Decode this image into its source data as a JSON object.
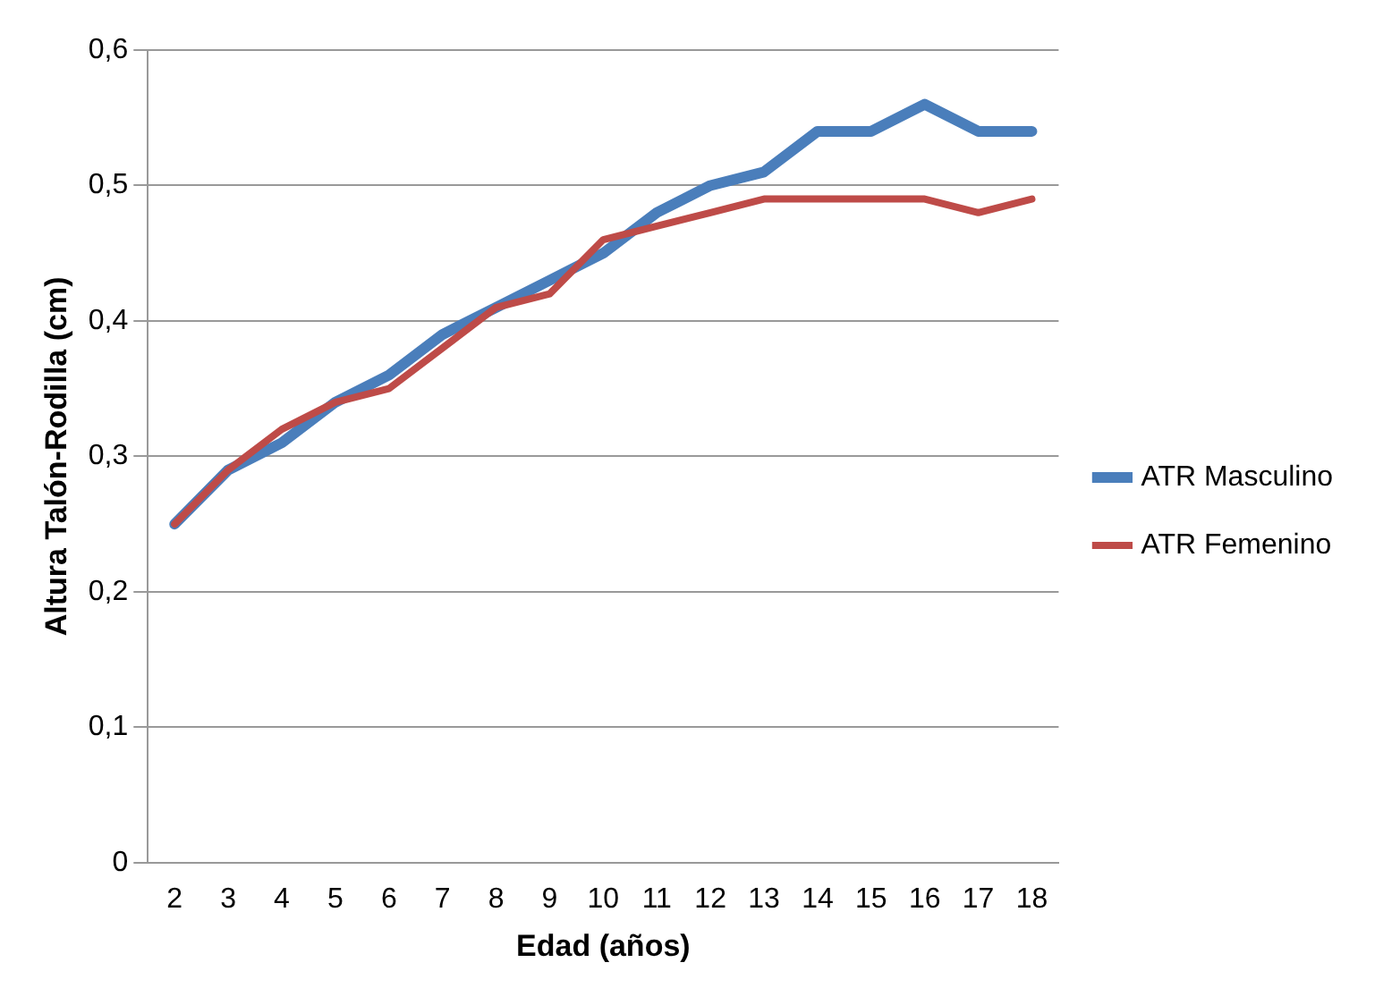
{
  "chart_data": {
    "type": "line",
    "xlabel": "Edad (años)",
    "ylabel": "Altura Talón-Rodilla (cm)",
    "categories": [
      "2",
      "3",
      "4",
      "5",
      "6",
      "7",
      "8",
      "9",
      "10",
      "11",
      "12",
      "13",
      "14",
      "15",
      "16",
      "17",
      "18"
    ],
    "series": [
      {
        "name": "ATR Masculino",
        "color": "#4a7ebb",
        "values": [
          0.25,
          0.29,
          0.31,
          0.34,
          0.36,
          0.39,
          0.41,
          0.43,
          0.45,
          0.48,
          0.5,
          0.51,
          0.54,
          0.54,
          0.56,
          0.54,
          0.54
        ]
      },
      {
        "name": "ATR Femenino",
        "color": "#be4b48",
        "values": [
          0.25,
          0.29,
          0.32,
          0.34,
          0.35,
          0.38,
          0.41,
          0.42,
          0.46,
          0.47,
          0.48,
          0.49,
          0.49,
          0.49,
          0.49,
          0.48,
          0.49
        ]
      }
    ],
    "ylim": [
      0,
      0.6
    ],
    "yticks": [
      0,
      {
        "value": 0.1,
        "label": "0,1"
      },
      {
        "value": 0.2,
        "label": "0,2"
      },
      {
        "value": 0.3,
        "label": "0,3"
      },
      {
        "value": 0.4,
        "label": "0,4"
      },
      {
        "value": 0.5,
        "label": "0,5"
      },
      {
        "value": 0.6,
        "label": "0,6"
      }
    ],
    "grid": "y",
    "legend": "right",
    "marker": "none",
    "line_style": "solid"
  }
}
